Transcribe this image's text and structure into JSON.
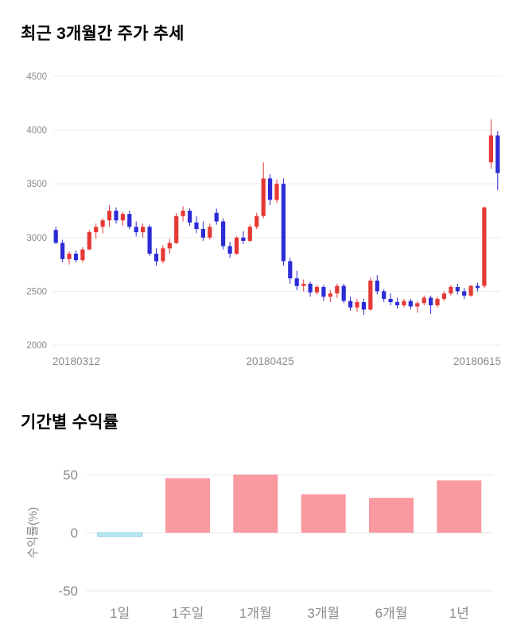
{
  "sections": {
    "price": {
      "title": "최근 3개월간 주가 추세"
    },
    "returns": {
      "title": "기간별 수익률"
    }
  },
  "chart_data": [
    {
      "type": "candlestick",
      "title": "최근 3개월간 주가 추세",
      "ylim": [
        2000,
        4500
      ],
      "yticks": [
        2000,
        2500,
        3000,
        3500,
        4000,
        4500
      ],
      "xtick_labels": [
        "20180312",
        "20180425",
        "20180615"
      ],
      "up_color": "#e53935",
      "down_color": "#2c2cd6",
      "grid_color": "#ececec",
      "tick_color": "#8a8a8a",
      "candles": [
        [
          3070,
          3100,
          2940,
          2950
        ],
        [
          2950,
          2980,
          2770,
          2800
        ],
        [
          2800,
          2870,
          2750,
          2850
        ],
        [
          2850,
          2880,
          2770,
          2790
        ],
        [
          2790,
          2910,
          2770,
          2890
        ],
        [
          2890,
          3070,
          2880,
          3050
        ],
        [
          3050,
          3130,
          2990,
          3100
        ],
        [
          3100,
          3180,
          3040,
          3160
        ],
        [
          3160,
          3300,
          3100,
          3250
        ],
        [
          3250,
          3280,
          3130,
          3160
        ],
        [
          3160,
          3240,
          3110,
          3220
        ],
        [
          3220,
          3250,
          3080,
          3100
        ],
        [
          3100,
          3150,
          3010,
          3050
        ],
        [
          3050,
          3130,
          3000,
          3100
        ],
        [
          3100,
          3120,
          2830,
          2850
        ],
        [
          2850,
          2900,
          2740,
          2780
        ],
        [
          2780,
          2930,
          2760,
          2900
        ],
        [
          2900,
          2990,
          2850,
          2950
        ],
        [
          2950,
          3230,
          2940,
          3200
        ],
        [
          3200,
          3290,
          3150,
          3250
        ],
        [
          3250,
          3270,
          3110,
          3140
        ],
        [
          3140,
          3200,
          3040,
          3080
        ],
        [
          3080,
          3150,
          2970,
          3000
        ],
        [
          3000,
          3130,
          2980,
          3100
        ],
        [
          3230,
          3270,
          3120,
          3150
        ],
        [
          3150,
          3180,
          2890,
          2920
        ],
        [
          2920,
          2960,
          2810,
          2850
        ],
        [
          2850,
          3010,
          2840,
          3000
        ],
        [
          3000,
          3060,
          2940,
          2970
        ],
        [
          2970,
          3120,
          2960,
          3100
        ],
        [
          3100,
          3230,
          3080,
          3200
        ],
        [
          3200,
          3700,
          3180,
          3550
        ],
        [
          3550,
          3590,
          3300,
          3350
        ],
        [
          3350,
          3540,
          3320,
          3500
        ],
        [
          3500,
          3550,
          2740,
          2780
        ],
        [
          2780,
          2810,
          2570,
          2620
        ],
        [
          2620,
          2690,
          2510,
          2550
        ],
        [
          2550,
          2610,
          2500,
          2570
        ],
        [
          2570,
          2590,
          2450,
          2490
        ],
        [
          2490,
          2560,
          2470,
          2540
        ],
        [
          2540,
          2560,
          2410,
          2450
        ],
        [
          2450,
          2510,
          2400,
          2480
        ],
        [
          2480,
          2570,
          2440,
          2550
        ],
        [
          2550,
          2570,
          2390,
          2410
        ],
        [
          2410,
          2450,
          2320,
          2350
        ],
        [
          2350,
          2430,
          2310,
          2400
        ],
        [
          2400,
          2430,
          2280,
          2330
        ],
        [
          2330,
          2630,
          2320,
          2600
        ],
        [
          2600,
          2650,
          2470,
          2500
        ],
        [
          2500,
          2520,
          2400,
          2430
        ],
        [
          2430,
          2480,
          2370,
          2400
        ],
        [
          2400,
          2440,
          2340,
          2370
        ],
        [
          2370,
          2430,
          2350,
          2410
        ],
        [
          2410,
          2430,
          2330,
          2360
        ],
        [
          2360,
          2410,
          2300,
          2390
        ],
        [
          2390,
          2460,
          2370,
          2440
        ],
        [
          2440,
          2460,
          2290,
          2370
        ],
        [
          2370,
          2450,
          2350,
          2430
        ],
        [
          2430,
          2500,
          2410,
          2480
        ],
        [
          2480,
          2560,
          2460,
          2540
        ],
        [
          2540,
          2570,
          2470,
          2500
        ],
        [
          2500,
          2530,
          2430,
          2460
        ],
        [
          2460,
          2560,
          2450,
          2550
        ],
        [
          2550,
          2580,
          2500,
          2530
        ],
        [
          2550,
          3290,
          2530,
          3280
        ],
        [
          3700,
          4100,
          3640,
          3950
        ],
        [
          3950,
          3990,
          3440,
          3600
        ]
      ]
    },
    {
      "type": "bar",
      "title": "기간별 수익률",
      "categories": [
        "1일",
        "1주일",
        "1개월",
        "3개월",
        "6개월",
        "1년"
      ],
      "values": [
        -3,
        47,
        50,
        33,
        30,
        45
      ],
      "ylabel": "수익률(%)",
      "ylim": [
        -50,
        50
      ],
      "yticks": [
        50,
        0,
        -50
      ],
      "positive_color": "#f99aa0",
      "negative_color": "#bfe9f3",
      "negative_border": "#84cfe3",
      "grid_color": "#e5e5e5",
      "tick_color": "#8a8a8a"
    }
  ]
}
